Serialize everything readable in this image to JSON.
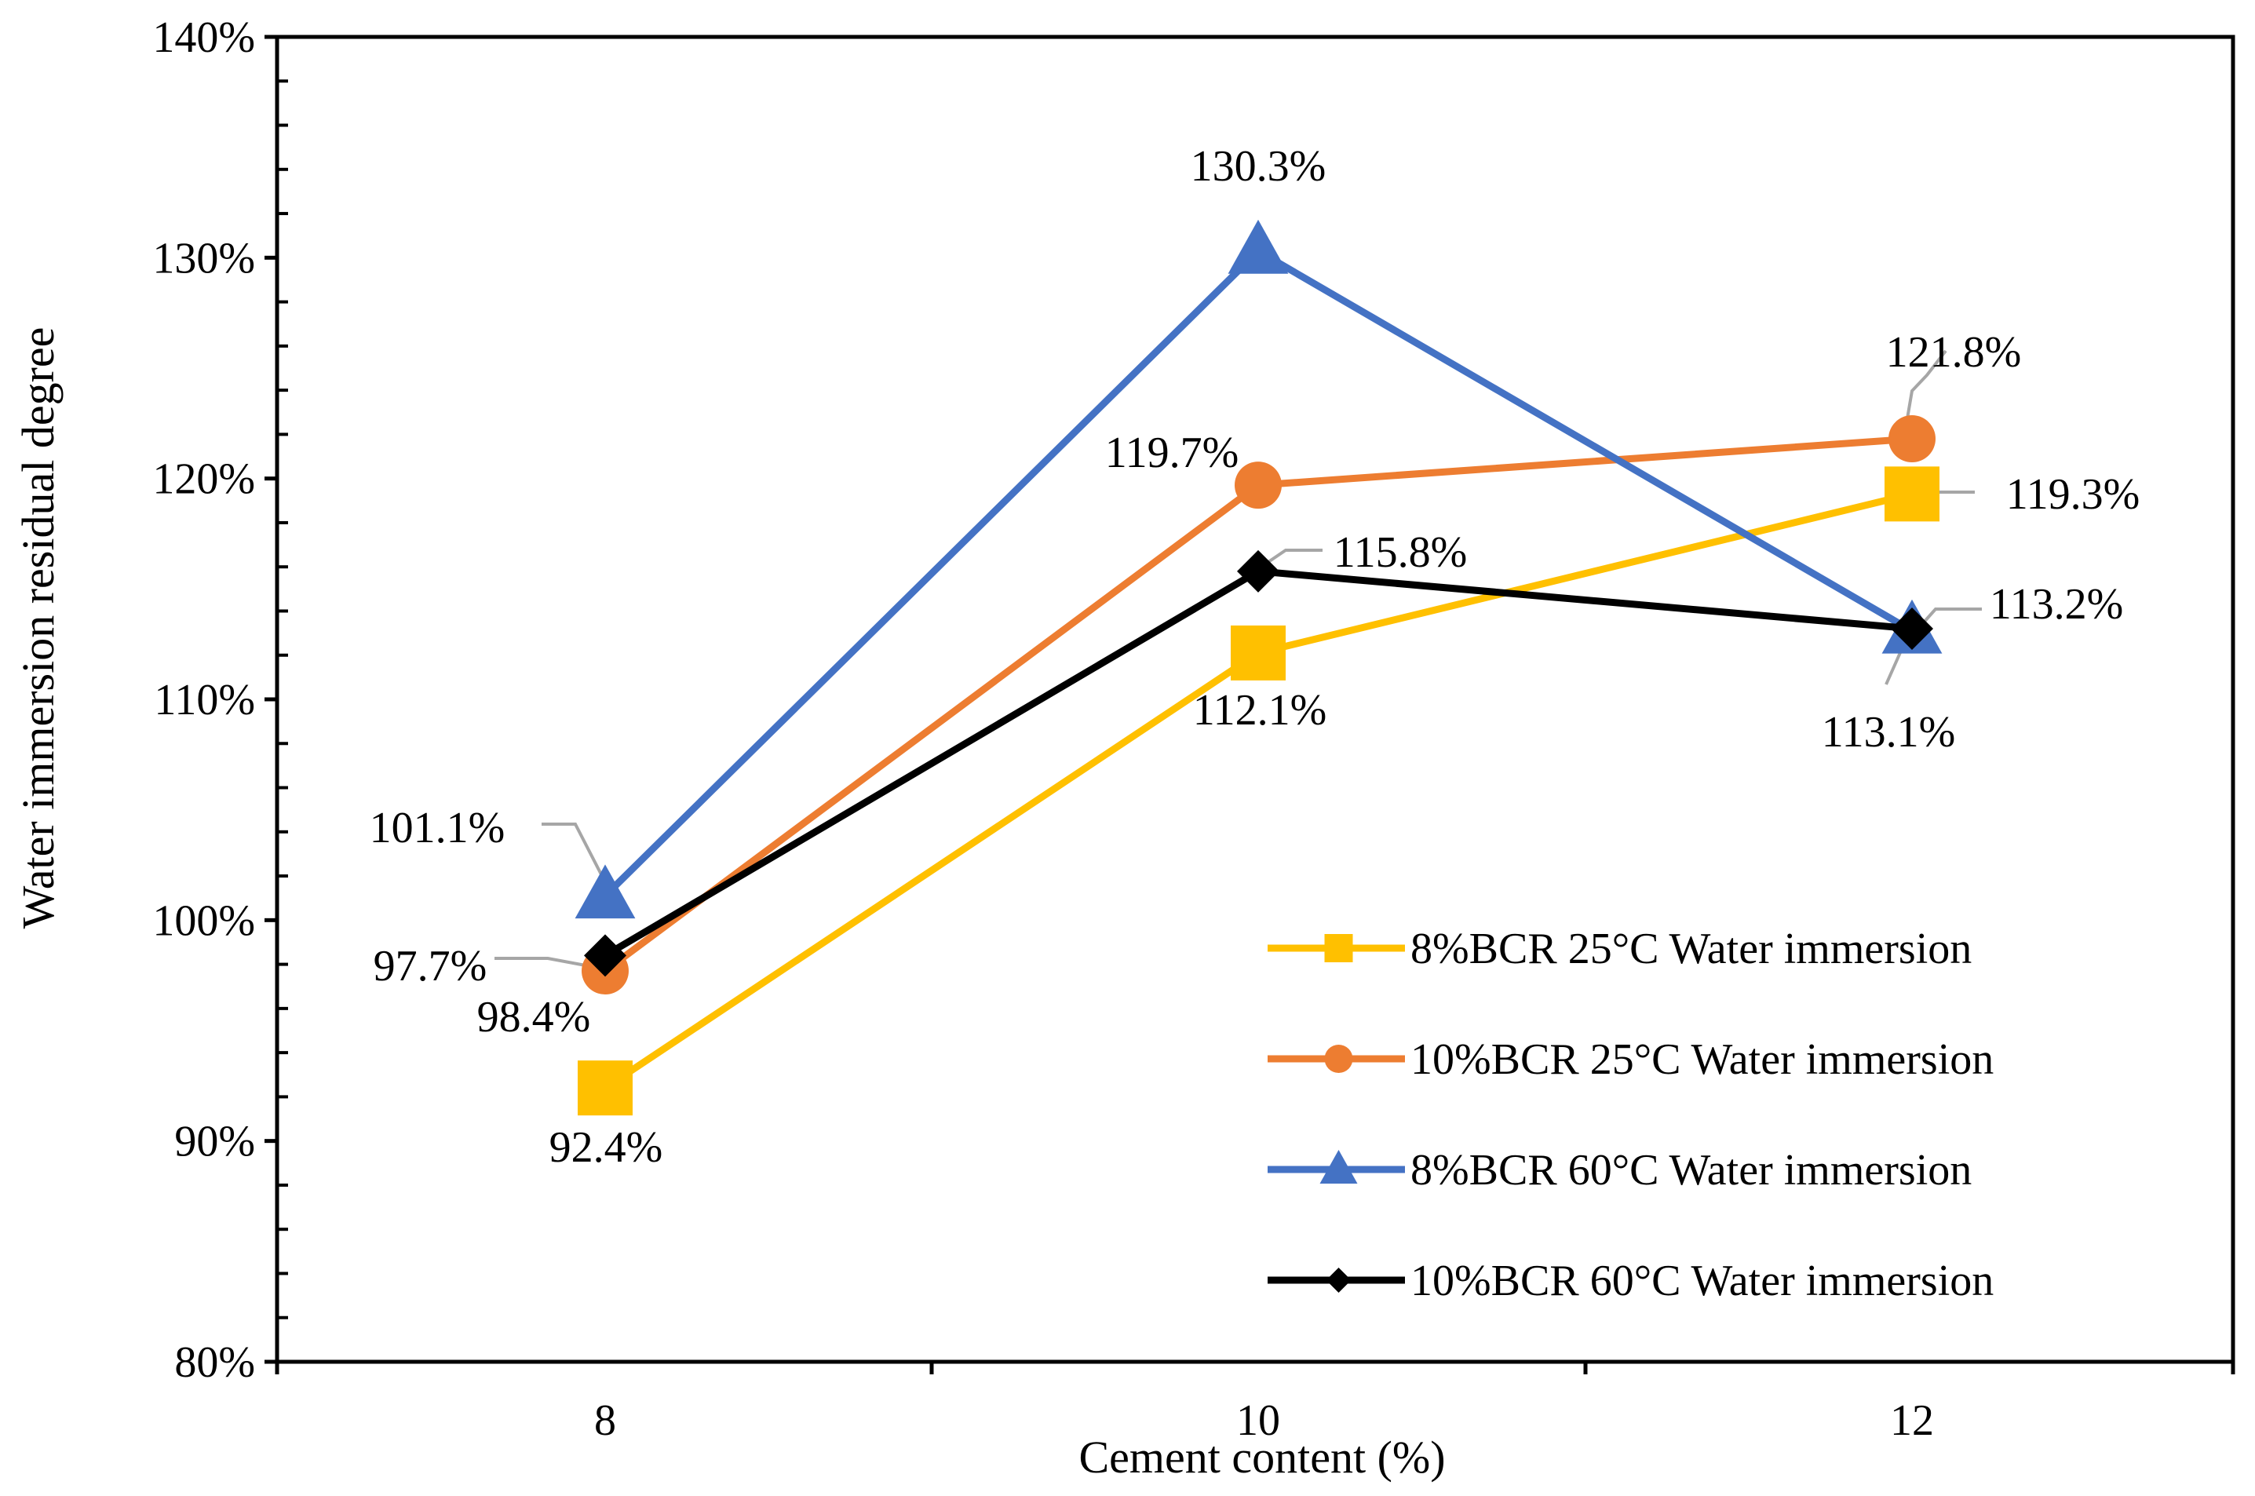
{
  "chart_data": {
    "type": "line",
    "title": "",
    "xlabel": "Cement content (%)",
    "ylabel": "Water immersion residual degree",
    "categories": [
      "8",
      "10",
      "12"
    ],
    "ylim": [
      80,
      140
    ],
    "y_ticks": [
      "80%",
      "90%",
      "100%",
      "110%",
      "120%",
      "130%",
      "140%"
    ],
    "y_tick_values": [
      80,
      90,
      100,
      110,
      120,
      130,
      140
    ],
    "grid": false,
    "legend_position": "bottom-right",
    "leader_line_color": "#a6a6a6",
    "series": [
      {
        "name": "8%BCR 25°C Water immersion",
        "marker": "square",
        "color": "#ffc000",
        "values": [
          92.4,
          112.1,
          119.3
        ],
        "labels": [
          "92.4%",
          "112.1%",
          "119.3%"
        ]
      },
      {
        "name": "10%BCR 25°C Water immersion",
        "marker": "circle",
        "color": "#ed7d31",
        "values": [
          97.7,
          119.7,
          121.8
        ],
        "labels": [
          "97.7%",
          "119.7%",
          "121.8%"
        ]
      },
      {
        "name": "8%BCR 60°C Water immersion",
        "marker": "triangle",
        "color": "#4472c4",
        "values": [
          101.1,
          130.3,
          113.1
        ],
        "labels": [
          "101.1%",
          "130.3%",
          "113.1%"
        ]
      },
      {
        "name": "10%BCR 60°C Water immersion",
        "marker": "diamond",
        "color": "#000000",
        "values": [
          98.4,
          115.8,
          113.2
        ],
        "labels": [
          "98.4%",
          "115.8%",
          "113.2%"
        ]
      }
    ]
  }
}
